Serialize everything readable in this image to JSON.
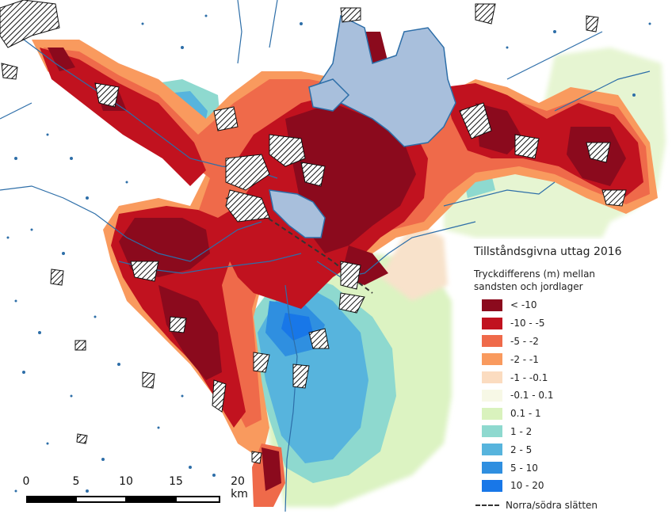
{
  "legend": {
    "title": "Tillståndsgivna uttag 2016",
    "subtitle": "Tryckdifferens (m) mellan\nsandsten och jordlager",
    "classes": [
      {
        "label": "< -10",
        "color": "#8b0a1d"
      },
      {
        "label": "-10 - -5",
        "color": "#c1121f"
      },
      {
        "label": "-5 - -2",
        "color": "#ef6a4a"
      },
      {
        "label": "-2 - -1",
        "color": "#f99a5e"
      },
      {
        "label": "-1 - -0.1",
        "color": "#fbdcc0"
      },
      {
        "label": "-0.1 - 0.1",
        "color": "#f7f8e6"
      },
      {
        "label": "0.1 - 1",
        "color": "#d9f2bd"
      },
      {
        "label": "1 - 2",
        "color": "#8ed9cf"
      },
      {
        "label": "2 - 5",
        "color": "#57b4dd"
      },
      {
        "label": "5 - 10",
        "color": "#2f8fe0"
      },
      {
        "label": "10 - 20",
        "color": "#1877e8"
      }
    ],
    "line_label": "Norra/södra slätten"
  },
  "scalebar": {
    "ticks": [
      "0",
      "5",
      "10",
      "15",
      "20 km"
    ]
  },
  "map": {
    "colors": {
      "water": "#a8bfdc",
      "stream": "#2d6ea8",
      "hatch": "#111111",
      "background": "#ffffff"
    }
  }
}
